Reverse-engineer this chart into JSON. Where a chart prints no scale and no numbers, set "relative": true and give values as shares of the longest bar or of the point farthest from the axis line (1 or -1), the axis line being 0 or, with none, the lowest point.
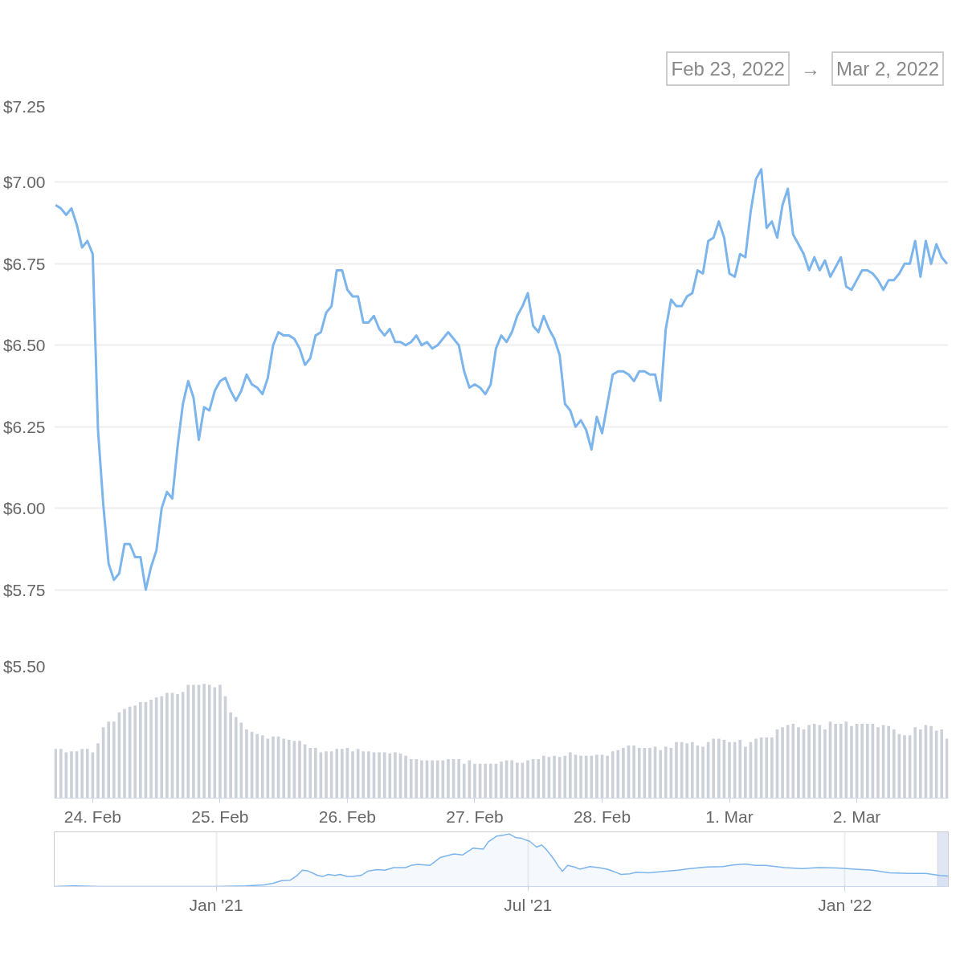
{
  "chart_data": [
    {
      "type": "line",
      "annotations": [
        "Feb 23, 2022",
        "→",
        "Mar 2, 2022"
      ],
      "x": [
        "2022-02-23T17:00",
        "2022-02-23T18:00",
        "2022-02-23T19:00",
        "2022-02-23T20:00",
        "2022-02-23T21:00",
        "2022-02-23T22:00",
        "2022-02-23T23:00",
        "2022-02-24T00:00",
        "2022-02-24T01:00",
        "2022-02-24T02:00",
        "2022-02-24T03:00",
        "2022-02-24T04:00",
        "2022-02-24T05:00",
        "2022-02-24T06:00",
        "2022-02-24T07:00",
        "2022-02-24T08:00",
        "2022-02-24T09:00",
        "2022-02-24T10:00",
        "2022-02-24T11:00",
        "2022-02-24T12:00",
        "2022-02-24T13:00",
        "2022-02-24T14:00",
        "2022-02-24T15:00",
        "2022-02-24T16:00",
        "2022-02-24T17:00",
        "2022-02-24T18:00",
        "2022-02-24T19:00",
        "2022-02-24T20:00",
        "2022-02-24T21:00",
        "2022-02-24T22:00",
        "2022-02-24T23:00",
        "2022-02-25T00:00",
        "2022-02-25T01:00",
        "2022-02-25T02:00",
        "2022-02-25T03:00",
        "2022-02-25T04:00",
        "2022-02-25T05:00",
        "2022-02-25T06:00",
        "2022-02-25T07:00",
        "2022-02-25T08:00",
        "2022-02-25T09:00",
        "2022-02-25T10:00",
        "2022-02-25T11:00",
        "2022-02-25T12:00",
        "2022-02-25T13:00",
        "2022-02-25T14:00",
        "2022-02-25T15:00",
        "2022-02-25T16:00",
        "2022-02-25T17:00",
        "2022-02-25T18:00",
        "2022-02-25T19:00",
        "2022-02-25T20:00",
        "2022-02-25T21:00",
        "2022-02-25T22:00",
        "2022-02-25T23:00",
        "2022-02-26T00:00",
        "2022-02-26T01:00",
        "2022-02-26T02:00",
        "2022-02-26T03:00",
        "2022-02-26T04:00",
        "2022-02-26T05:00",
        "2022-02-26T06:00",
        "2022-02-26T07:00",
        "2022-02-26T08:00",
        "2022-02-26T09:00",
        "2022-02-26T10:00",
        "2022-02-26T11:00",
        "2022-02-26T12:00",
        "2022-02-26T13:00",
        "2022-02-26T14:00",
        "2022-02-26T15:00",
        "2022-02-26T16:00",
        "2022-02-26T17:00",
        "2022-02-26T18:00",
        "2022-02-26T19:00",
        "2022-02-26T20:00",
        "2022-02-26T21:00",
        "2022-02-26T22:00",
        "2022-02-26T23:00",
        "2022-02-27T00:00",
        "2022-02-27T01:00",
        "2022-02-27T02:00",
        "2022-02-27T03:00",
        "2022-02-27T04:00",
        "2022-02-27T05:00",
        "2022-02-27T06:00",
        "2022-02-27T07:00",
        "2022-02-27T08:00",
        "2022-02-27T09:00",
        "2022-02-27T10:00",
        "2022-02-27T11:00",
        "2022-02-27T12:00",
        "2022-02-27T13:00",
        "2022-02-27T14:00",
        "2022-02-27T15:00",
        "2022-02-27T16:00",
        "2022-02-27T17:00",
        "2022-02-27T18:00",
        "2022-02-27T19:00",
        "2022-02-27T20:00",
        "2022-02-27T21:00",
        "2022-02-27T22:00",
        "2022-02-27T23:00",
        "2022-02-28T00:00",
        "2022-02-28T01:00",
        "2022-02-28T02:00",
        "2022-02-28T03:00",
        "2022-02-28T04:00",
        "2022-02-28T05:00",
        "2022-02-28T06:00",
        "2022-02-28T07:00",
        "2022-02-28T08:00",
        "2022-02-28T09:00",
        "2022-02-28T10:00",
        "2022-02-28T11:00",
        "2022-02-28T12:00",
        "2022-02-28T13:00",
        "2022-02-28T14:00",
        "2022-02-28T15:00",
        "2022-02-28T16:00",
        "2022-02-28T17:00",
        "2022-02-28T18:00",
        "2022-02-28T19:00",
        "2022-02-28T20:00",
        "2022-02-28T21:00",
        "2022-02-28T22:00",
        "2022-02-28T23:00",
        "2022-03-01T00:00",
        "2022-03-01T01:00",
        "2022-03-01T02:00",
        "2022-03-01T03:00",
        "2022-03-01T04:00",
        "2022-03-01T05:00",
        "2022-03-01T06:00",
        "2022-03-01T07:00",
        "2022-03-01T08:00",
        "2022-03-01T09:00",
        "2022-03-01T10:00",
        "2022-03-01T11:00",
        "2022-03-01T12:00",
        "2022-03-01T13:00",
        "2022-03-01T14:00",
        "2022-03-01T15:00",
        "2022-03-01T16:00",
        "2022-03-01T17:00",
        "2022-03-01T18:00",
        "2022-03-01T19:00",
        "2022-03-01T20:00",
        "2022-03-01T21:00",
        "2022-03-01T22:00",
        "2022-03-01T23:00",
        "2022-03-02T00:00",
        "2022-03-02T01:00",
        "2022-03-02T02:00",
        "2022-03-02T03:00",
        "2022-03-02T04:00",
        "2022-03-02T05:00",
        "2022-03-02T06:00",
        "2022-03-02T07:00",
        "2022-03-02T08:00",
        "2022-03-02T09:00",
        "2022-03-02T10:00",
        "2022-03-02T11:00",
        "2022-03-02T12:00",
        "2022-03-02T13:00",
        "2022-03-02T14:00",
        "2022-03-02T15:00",
        "2022-03-02T16:00",
        "2022-03-02T17:00"
      ],
      "series": [
        {
          "color": "#7cb5ec",
          "values": [
            6.93,
            6.92,
            6.9,
            6.92,
            6.87,
            6.8,
            6.82,
            6.78,
            6.24,
            6.01,
            5.83,
            5.78,
            5.8,
            5.89,
            5.89,
            5.85,
            5.85,
            5.75,
            5.82,
            5.87,
            6.0,
            6.05,
            6.03,
            6.19,
            6.32,
            6.39,
            6.34,
            6.21,
            6.31,
            6.3,
            6.36,
            6.39,
            6.4,
            6.36,
            6.33,
            6.36,
            6.41,
            6.38,
            6.37,
            6.35,
            6.4,
            6.5,
            6.54,
            6.53,
            6.53,
            6.52,
            6.49,
            6.44,
            6.46,
            6.53,
            6.54,
            6.6,
            6.62,
            6.73,
            6.73,
            6.67,
            6.65,
            6.65,
            6.57,
            6.57,
            6.59,
            6.55,
            6.53,
            6.55,
            6.51,
            6.51,
            6.5,
            6.51,
            6.53,
            6.5,
            6.51,
            6.49,
            6.5,
            6.52,
            6.54,
            6.52,
            6.5,
            6.42,
            6.37,
            6.38,
            6.37,
            6.35,
            6.38,
            6.49,
            6.53,
            6.51,
            6.54,
            6.59,
            6.62,
            6.66,
            6.56,
            6.54,
            6.59,
            6.55,
            6.52,
            6.47,
            6.32,
            6.3,
            6.25,
            6.27,
            6.24,
            6.18,
            6.28,
            6.23,
            6.32,
            6.41,
            6.42,
            6.42,
            6.41,
            6.39,
            6.42,
            6.42,
            6.41,
            6.41,
            6.33,
            6.55,
            6.64,
            6.62,
            6.62,
            6.65,
            6.66,
            6.73,
            6.72,
            6.82,
            6.83,
            6.88,
            6.83,
            6.72,
            6.71,
            6.78,
            6.77,
            6.91,
            7.01,
            7.04,
            6.86,
            6.88,
            6.83,
            6.93,
            6.98,
            6.84,
            6.81,
            6.78,
            6.73,
            6.77,
            6.73,
            6.76,
            6.71,
            6.74,
            6.77,
            6.68,
            6.67,
            6.7,
            6.73,
            6.73,
            6.72,
            6.7,
            6.67,
            6.7,
            6.7,
            6.72,
            6.75,
            6.75,
            6.82,
            6.71,
            6.82,
            6.75,
            6.81,
            6.77,
            6.75
          ]
        }
      ],
      "xlim": [
        "2022-02-23T16:45",
        "2022-03-02T17:15"
      ],
      "ylim": [
        5.5,
        7.25
      ],
      "yticks": [
        {
          "value": 5.5,
          "label": "$5.50"
        },
        {
          "value": 5.75,
          "label": "$5.75"
        },
        {
          "value": 6.0,
          "label": "$6.00"
        },
        {
          "value": 6.25,
          "label": "$6.25"
        },
        {
          "value": 6.5,
          "label": "$6.50"
        },
        {
          "value": 6.75,
          "label": "$6.75"
        },
        {
          "value": 7.0,
          "label": "$7.00"
        },
        {
          "value": 7.25,
          "label": "$7.25"
        }
      ],
      "grid": "y",
      "tick_labels": "y",
      "line_style": "solid"
    },
    {
      "type": "bar",
      "relative": true,
      "x": [
        "2022-02-23T17:00",
        "2022-02-23T18:00",
        "2022-02-23T19:00",
        "2022-02-23T20:00",
        "2022-02-23T21:00",
        "2022-02-23T22:00",
        "2022-02-23T23:00",
        "2022-02-24T00:00",
        "2022-02-24T01:00",
        "2022-02-24T02:00",
        "2022-02-24T03:00",
        "2022-02-24T04:00",
        "2022-02-24T05:00",
        "2022-02-24T06:00",
        "2022-02-24T07:00",
        "2022-02-24T08:00",
        "2022-02-24T09:00",
        "2022-02-24T10:00",
        "2022-02-24T11:00",
        "2022-02-24T12:00",
        "2022-02-24T13:00",
        "2022-02-24T14:00",
        "2022-02-24T15:00",
        "2022-02-24T16:00",
        "2022-02-24T17:00",
        "2022-02-24T18:00",
        "2022-02-24T19:00",
        "2022-02-24T20:00",
        "2022-02-24T21:00",
        "2022-02-24T22:00",
        "2022-02-24T23:00",
        "2022-02-25T00:00",
        "2022-02-25T01:00",
        "2022-02-25T02:00",
        "2022-02-25T03:00",
        "2022-02-25T04:00",
        "2022-02-25T05:00",
        "2022-02-25T06:00",
        "2022-02-25T07:00",
        "2022-02-25T08:00",
        "2022-02-25T09:00",
        "2022-02-25T10:00",
        "2022-02-25T11:00",
        "2022-02-25T12:00",
        "2022-02-25T13:00",
        "2022-02-25T14:00",
        "2022-02-25T15:00",
        "2022-02-25T16:00",
        "2022-02-25T17:00",
        "2022-02-25T18:00",
        "2022-02-25T19:00",
        "2022-02-25T20:00",
        "2022-02-25T21:00",
        "2022-02-25T22:00",
        "2022-02-25T23:00",
        "2022-02-26T00:00",
        "2022-02-26T01:00",
        "2022-02-26T02:00",
        "2022-02-26T03:00",
        "2022-02-26T04:00",
        "2022-02-26T05:00",
        "2022-02-26T06:00",
        "2022-02-26T07:00",
        "2022-02-26T08:00",
        "2022-02-26T09:00",
        "2022-02-26T10:00",
        "2022-02-26T11:00",
        "2022-02-26T12:00",
        "2022-02-26T13:00",
        "2022-02-26T14:00",
        "2022-02-26T15:00",
        "2022-02-26T16:00",
        "2022-02-26T17:00",
        "2022-02-26T18:00",
        "2022-02-26T19:00",
        "2022-02-26T20:00",
        "2022-02-26T21:00",
        "2022-02-26T22:00",
        "2022-02-26T23:00",
        "2022-02-27T00:00",
        "2022-02-27T01:00",
        "2022-02-27T02:00",
        "2022-02-27T03:00",
        "2022-02-27T04:00",
        "2022-02-27T05:00",
        "2022-02-27T06:00",
        "2022-02-27T07:00",
        "2022-02-27T08:00",
        "2022-02-27T09:00",
        "2022-02-27T10:00",
        "2022-02-27T11:00",
        "2022-02-27T12:00",
        "2022-02-27T13:00",
        "2022-02-27T14:00",
        "2022-02-27T15:00",
        "2022-02-27T16:00",
        "2022-02-27T17:00",
        "2022-02-27T18:00",
        "2022-02-27T19:00",
        "2022-02-27T20:00",
        "2022-02-27T21:00",
        "2022-02-27T22:00",
        "2022-02-27T23:00",
        "2022-02-28T00:00",
        "2022-02-28T01:00",
        "2022-02-28T02:00",
        "2022-02-28T03:00",
        "2022-02-28T04:00",
        "2022-02-28T05:00",
        "2022-02-28T06:00",
        "2022-02-28T07:00",
        "2022-02-28T08:00",
        "2022-02-28T09:00",
        "2022-02-28T10:00",
        "2022-02-28T11:00",
        "2022-02-28T12:00",
        "2022-02-28T13:00",
        "2022-02-28T14:00",
        "2022-02-28T15:00",
        "2022-02-28T16:00",
        "2022-02-28T17:00",
        "2022-02-28T18:00",
        "2022-02-28T19:00",
        "2022-02-28T20:00",
        "2022-02-28T21:00",
        "2022-02-28T22:00",
        "2022-02-28T23:00",
        "2022-03-01T00:00",
        "2022-03-01T01:00",
        "2022-03-01T02:00",
        "2022-03-01T03:00",
        "2022-03-01T04:00",
        "2022-03-01T05:00",
        "2022-03-01T06:00",
        "2022-03-01T07:00",
        "2022-03-01T08:00",
        "2022-03-01T09:00",
        "2022-03-01T10:00",
        "2022-03-01T11:00",
        "2022-03-01T12:00",
        "2022-03-01T13:00",
        "2022-03-01T14:00",
        "2022-03-01T15:00",
        "2022-03-01T16:00",
        "2022-03-01T17:00",
        "2022-03-01T18:00",
        "2022-03-01T19:00",
        "2022-03-01T20:00",
        "2022-03-01T21:00",
        "2022-03-01T22:00",
        "2022-03-01T23:00",
        "2022-03-02T00:00",
        "2022-03-02T01:00",
        "2022-03-02T02:00",
        "2022-03-02T03:00",
        "2022-03-02T04:00",
        "2022-03-02T05:00",
        "2022-03-02T06:00",
        "2022-03-02T07:00",
        "2022-03-02T08:00",
        "2022-03-02T09:00",
        "2022-03-02T10:00",
        "2022-03-02T11:00",
        "2022-03-02T12:00",
        "2022-03-02T13:00",
        "2022-03-02T14:00",
        "2022-03-02T15:00",
        "2022-03-02T16:00",
        "2022-03-02T17:00"
      ],
      "series": [
        {
          "color": "#ccd0d8",
          "values": [
            0.43,
            0.43,
            0.4,
            0.41,
            0.41,
            0.43,
            0.43,
            0.4,
            0.48,
            0.62,
            0.67,
            0.67,
            0.75,
            0.78,
            0.8,
            0.81,
            0.84,
            0.84,
            0.86,
            0.88,
            0.89,
            0.92,
            0.92,
            0.91,
            0.93,
            0.99,
            0.99,
            0.99,
            1,
            0.99,
            0.97,
            0.99,
            0.89,
            0.75,
            0.71,
            0.66,
            0.6,
            0.58,
            0.56,
            0.55,
            0.52,
            0.54,
            0.54,
            0.52,
            0.51,
            0.5,
            0.5,
            0.47,
            0.44,
            0.44,
            0.4,
            0.41,
            0.41,
            0.43,
            0.43,
            0.44,
            0.41,
            0.43,
            0.41,
            0.41,
            0.4,
            0.4,
            0.4,
            0.39,
            0.4,
            0.39,
            0.37,
            0.34,
            0.34,
            0.33,
            0.33,
            0.33,
            0.33,
            0.33,
            0.34,
            0.34,
            0.34,
            0.3,
            0.33,
            0.3,
            0.3,
            0.3,
            0.3,
            0.3,
            0.32,
            0.33,
            0.33,
            0.31,
            0.31,
            0.33,
            0.34,
            0.34,
            0.37,
            0.36,
            0.37,
            0.36,
            0.37,
            0.4,
            0.38,
            0.37,
            0.37,
            0.37,
            0.38,
            0.38,
            0.37,
            0.41,
            0.42,
            0.44,
            0.46,
            0.46,
            0.44,
            0.44,
            0.44,
            0.45,
            0.42,
            0.45,
            0.44,
            0.49,
            0.49,
            0.48,
            0.49,
            0.46,
            0.45,
            0.49,
            0.52,
            0.52,
            0.51,
            0.49,
            0.49,
            0.51,
            0.45,
            0.49,
            0.52,
            0.53,
            0.53,
            0.53,
            0.6,
            0.62,
            0.64,
            0.65,
            0.62,
            0.6,
            0.64,
            0.65,
            0.64,
            0.6,
            0.67,
            0.65,
            0.65,
            0.67,
            0.63,
            0.65,
            0.65,
            0.65,
            0.65,
            0.62,
            0.64,
            0.63,
            0.6,
            0.56,
            0.55,
            0.55,
            0.62,
            0.6,
            0.64,
            0.63,
            0.59,
            0.6,
            0.52
          ]
        }
      ],
      "xlim": [
        "2022-02-23T16:45",
        "2022-03-02T17:15"
      ],
      "xticks": [
        {
          "value": "2022-02-24",
          "label": "24. Feb"
        },
        {
          "value": "2022-02-25",
          "label": "25. Feb"
        },
        {
          "value": "2022-02-26",
          "label": "26. Feb"
        },
        {
          "value": "2022-02-27",
          "label": "27. Feb"
        },
        {
          "value": "2022-02-28",
          "label": "28. Feb"
        },
        {
          "value": "2022-03-01",
          "label": "1. Mar"
        },
        {
          "value": "2022-03-02",
          "label": "2. Mar"
        }
      ],
      "tick_labels": "x"
    },
    {
      "type": "area",
      "relative": true,
      "x": [
        "2020-09-29",
        "2020-10-11",
        "2020-10-25",
        "2020-11-28",
        "2021-01-01",
        "2021-01-18",
        "2021-01-29",
        "2021-02-03",
        "2021-02-08",
        "2021-02-13",
        "2021-02-17",
        "2021-02-20",
        "2021-02-23",
        "2021-03-01",
        "2021-03-04",
        "2021-03-07",
        "2021-03-11",
        "2021-03-14",
        "2021-03-18",
        "2021-03-21",
        "2021-03-26",
        "2021-03-30",
        "2021-04-04",
        "2021-04-09",
        "2021-04-14",
        "2021-04-21",
        "2021-04-24",
        "2021-04-28",
        "2021-05-05",
        "2021-05-11",
        "2021-05-19",
        "2021-05-24",
        "2021-05-30",
        "2021-06-05",
        "2021-06-08",
        "2021-06-13",
        "2021-06-17",
        "2021-06-20",
        "2021-06-24",
        "2021-06-27",
        "2021-07-02",
        "2021-07-06",
        "2021-07-09",
        "2021-07-12",
        "2021-07-16",
        "2021-07-19",
        "2021-07-21",
        "2021-07-24",
        "2021-07-28",
        "2021-07-31",
        "2021-08-06",
        "2021-08-11",
        "2021-08-16",
        "2021-08-21",
        "2021-08-24",
        "2021-08-29",
        "2021-09-02",
        "2021-09-09",
        "2021-09-19",
        "2021-09-26",
        "2021-10-03",
        "2021-10-13",
        "2021-10-22",
        "2021-10-28",
        "2021-11-04",
        "2021-11-10",
        "2021-11-16",
        "2021-11-27",
        "2021-12-07",
        "2021-12-17",
        "2021-12-28",
        "2022-01-07",
        "2022-01-17",
        "2022-01-27",
        "2022-02-07",
        "2022-02-17",
        "2022-02-25",
        "2022-03-02"
      ],
      "series": [
        {
          "color": "#7cb5ec",
          "values": [
            0,
            0.01,
            0,
            0,
            0,
            0.01,
            0.03,
            0.06,
            0.11,
            0.12,
            0.21,
            0.31,
            0.3,
            0.21,
            0.19,
            0.23,
            0.21,
            0.23,
            0.19,
            0.19,
            0.21,
            0.29,
            0.32,
            0.31,
            0.36,
            0.36,
            0.4,
            0.42,
            0.4,
            0.55,
            0.62,
            0.6,
            0.73,
            0.71,
            0.85,
            0.96,
            0.98,
            1,
            0.93,
            0.92,
            0.86,
            0.75,
            0.79,
            0.69,
            0.52,
            0.37,
            0.29,
            0.4,
            0.37,
            0.33,
            0.38,
            0.36,
            0.33,
            0.27,
            0.23,
            0.24,
            0.27,
            0.26,
            0.29,
            0.31,
            0.34,
            0.37,
            0.38,
            0.41,
            0.43,
            0.4,
            0.4,
            0.36,
            0.34,
            0.36,
            0.35,
            0.33,
            0.31,
            0.26,
            0.25,
            0.25,
            0.21,
            0.2
          ]
        }
      ],
      "xlim": [
        "2020-09-29",
        "2022-03-02"
      ],
      "xticks": [
        {
          "value": "2021-01-01",
          "label": "Jan '21"
        },
        {
          "value": "2021-07-01",
          "label": "Jul '21"
        },
        {
          "value": "2022-01-01",
          "label": "Jan '22"
        }
      ],
      "bands": [
        {
          "axis": "x",
          "from": "2022-02-23T17:00",
          "to": "2022-03-02T17:00",
          "color": "#ccd6eb"
        }
      ],
      "grid": "x",
      "tick_labels": "x"
    }
  ]
}
